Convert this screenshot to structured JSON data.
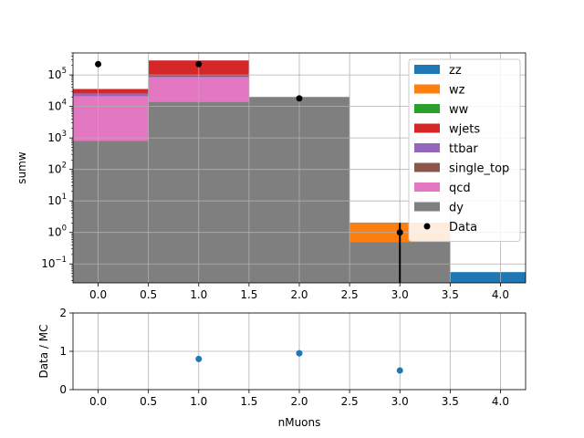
{
  "chart_data": [
    {
      "type": "bar",
      "stacked": true,
      "ylabel": "sumw",
      "yscale": "log",
      "ylim": [
        0.025,
        500000
      ],
      "xlim": [
        -0.25,
        4.25
      ],
      "grid": true,
      "legend_position": "top-right",
      "bin_edges": [
        -0.5,
        0.5,
        1.5,
        2.5,
        3.5,
        4.5
      ],
      "xticks": [
        "0.0",
        "0.5",
        "1.0",
        "1.5",
        "2.0",
        "2.5",
        "3.0",
        "3.5",
        "4.0"
      ],
      "yticks": [
        {
          "value": 0.1,
          "base": "10",
          "exp": "−1"
        },
        {
          "value": 1,
          "base": "10",
          "exp": "0"
        },
        {
          "value": 10,
          "base": "10",
          "exp": "1"
        },
        {
          "value": 100,
          "base": "10",
          "exp": "2"
        },
        {
          "value": 1000,
          "base": "10",
          "exp": "3"
        },
        {
          "value": 10000,
          "base": "10",
          "exp": "4"
        },
        {
          "value": 100000,
          "base": "10",
          "exp": "5"
        }
      ],
      "series": [
        {
          "name": "dy",
          "color": "#7f7f7f",
          "values": [
            800,
            14000,
            20000,
            0.5,
            0
          ]
        },
        {
          "name": "qcd",
          "color": "#e377c2",
          "values": [
            20000,
            70000,
            0,
            0,
            0
          ]
        },
        {
          "name": "single_top",
          "color": "#8c564b",
          "values": [
            0,
            0,
            0,
            0,
            0
          ]
        },
        {
          "name": "ttbar",
          "color": "#9467bd",
          "values": [
            5000,
            5000,
            0,
            0,
            0
          ]
        },
        {
          "name": "wjets",
          "color": "#d62728",
          "values": [
            10000,
            200000,
            0,
            0,
            0
          ]
        },
        {
          "name": "ww",
          "color": "#2ca02c",
          "values": [
            0,
            0,
            0,
            0,
            0
          ]
        },
        {
          "name": "wz",
          "color": "#ff7f0e",
          "values": [
            0,
            0,
            0,
            1.5,
            0
          ]
        },
        {
          "name": "zz",
          "color": "#1f77b4",
          "values": [
            0,
            0,
            0,
            0.05,
            0.055
          ]
        }
      ],
      "data_points": {
        "name": "Data",
        "x": [
          0,
          1,
          2,
          3
        ],
        "y": [
          220000,
          220000,
          18000,
          1
        ]
      },
      "legend_order": [
        "zz",
        "wz",
        "ww",
        "wjets",
        "ttbar",
        "single_top",
        "qcd",
        "dy",
        "Data"
      ]
    },
    {
      "type": "scatter",
      "xlabel": "nMuons",
      "ylabel": "Data / MC",
      "ylim": [
        0,
        2
      ],
      "xlim": [
        -0.25,
        4.25
      ],
      "grid": true,
      "xticks": [
        "0.0",
        "0.5",
        "1.0",
        "1.5",
        "2.0",
        "2.5",
        "3.0",
        "3.5",
        "4.0"
      ],
      "yticks": [
        "0",
        "1",
        "2"
      ],
      "x": [
        1,
        2,
        3
      ],
      "y": [
        0.8,
        0.95,
        0.5
      ],
      "color": "#1f77b4"
    }
  ]
}
